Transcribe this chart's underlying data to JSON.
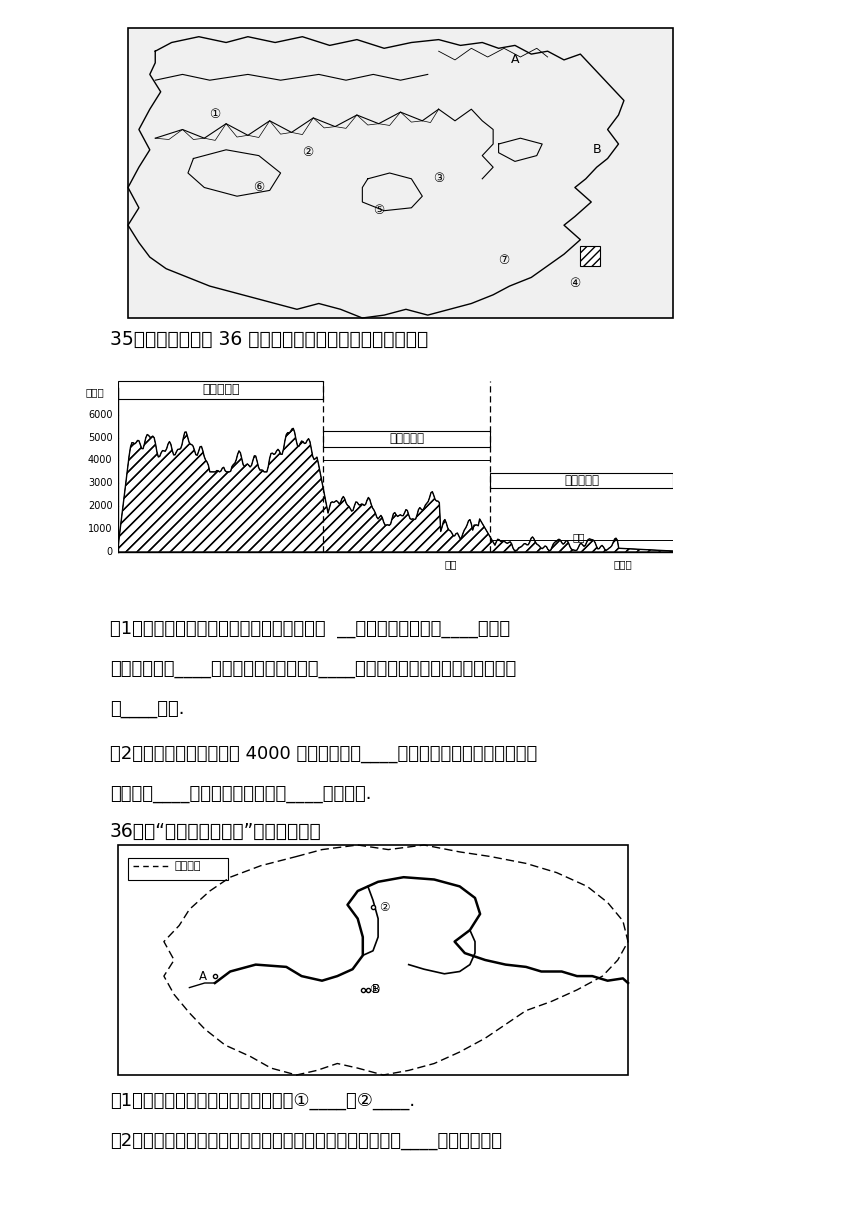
{
  "bg_color": "#ffffff",
  "text_color": "#000000",
  "page_width": 8.6,
  "page_height": 12.16,
  "q35_label": "35．读我国沿北纬 36 度附近地形剪面图，完成下列问题：",
  "q36_label": "36．读“黄河水系示意图”回答下列问题",
  "tier1_label": "第一级阶梯",
  "tier2_label": "第二级阶梯",
  "tier3_label": "第三级阶梯",
  "sanmen_label": "三门",
  "haian_label": "青岛",
  "haiping_label": "海平面",
  "mi_label": "（米）",
  "q35_text1": "（1）受地势的影响，我国大多数河流流向为  __奔流入海，沟通了____交通，",
  "q35_text2": "方便了沿海与____的联系，并在各阶梯的____地带形成巨大的落差，蕴藏着丰富",
  "q35_text3": "的____资源.",
  "q35_text4": "（2）我国地势平均海拔在 4000 米以上的是第____级阶梯；地形以盆地和高原为",
  "q35_text5": "主的是第____级阶梯；山东位于第____级阶梯上.",
  "q36_text1": "（1）地图中黄河主要支流的名称是：①____，②____.",
  "q36_text2": "（2）黄河是世界上含沙量最大的河流，含沙量大部分来自于____（上、中、下",
  "liuyu_label": "―― 流域界线"
}
